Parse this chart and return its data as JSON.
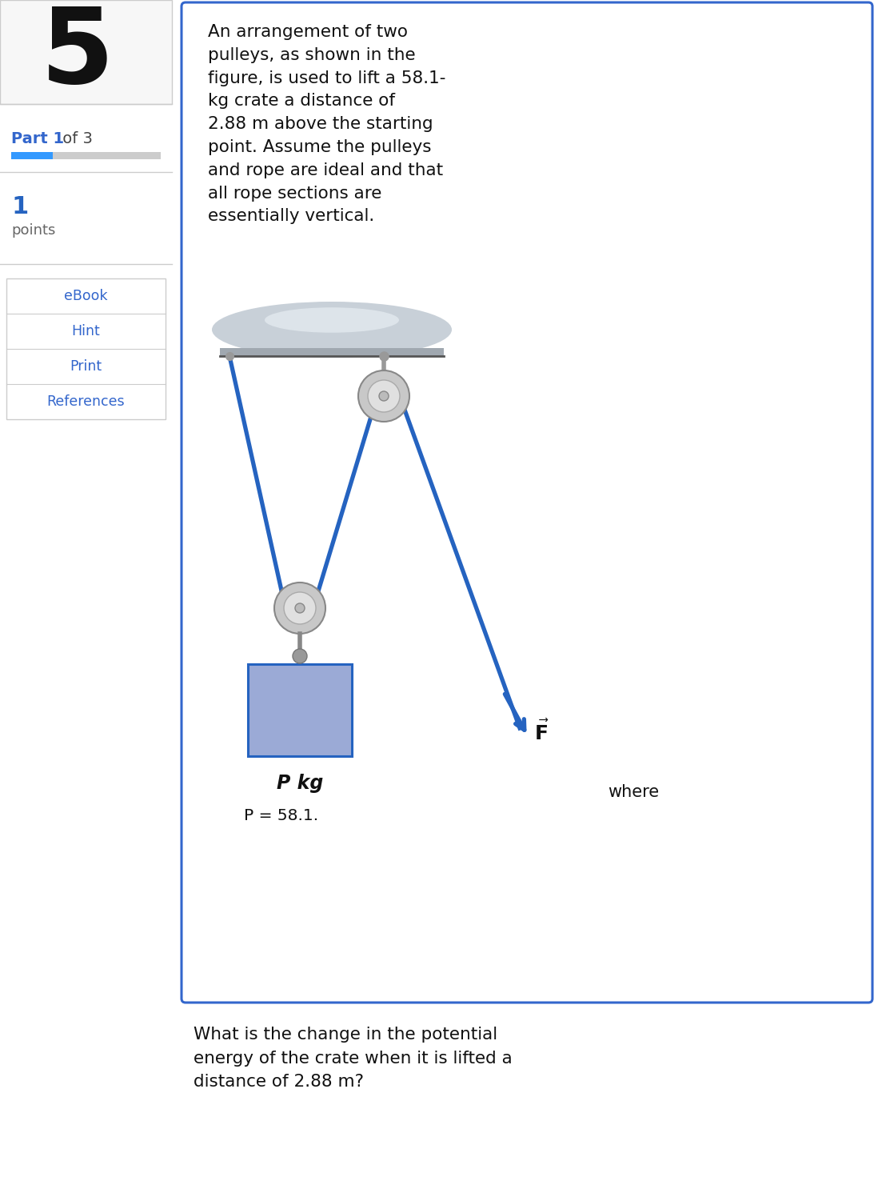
{
  "bg_color": "#ffffff",
  "number_text": "5",
  "part_bold": "Part 1",
  "part_rest": " of 3",
  "points_number": "1",
  "points_label": "points",
  "buttons": [
    "eBook",
    "Hint",
    "Print",
    "References"
  ],
  "problem_text": "An arrangement of two\npulleys, as shown in the\nfigure, is used to lift a 58.1-\nkg crate a distance of\n2.88 m above the starting\npoint. Assume the pulleys\nand rope are ideal and that\nall rope sections are\nessentially vertical.",
  "crate_label": "P kg",
  "p_value_label": "P = 58.1.",
  "where_label": "where",
  "question_text": "What is the change in the potential\nenergy of the crate when it is lifted a\ndistance of 2.88 m?",
  "rope_color": "#2563c0",
  "crate_fill": "#9baad6",
  "crate_edge": "#2563c0",
  "pulley_outer": "#c8c8c8",
  "pulley_mid": "#e0e0e0",
  "pulley_axle": "#aaaaaa",
  "ceiling_top": "#b0b8c0",
  "ceiling_bot": "#d8dde2",
  "blue_border": "#3366cc",
  "progress_blue": "#3399ff",
  "progress_gray": "#cccccc",
  "btn_text_color": "#3366cc",
  "btn_border": "#cccccc",
  "panel_bg": "#ffffff",
  "left_bg": "#ffffff"
}
